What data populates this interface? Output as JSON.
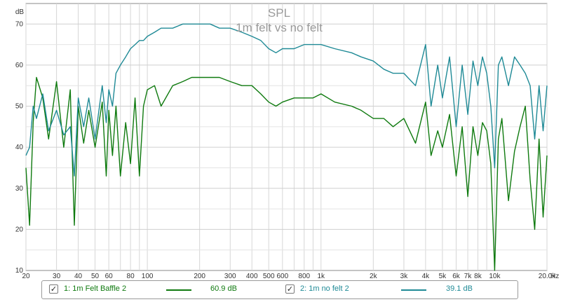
{
  "chart_data": {
    "type": "line",
    "title": "SPL",
    "subtitle": "1m felt vs no felt",
    "x_scale": "log",
    "xlim": [
      20,
      20000
    ],
    "ylim": [
      10,
      75
    ],
    "grid": true,
    "x_unit": "Hz",
    "x_ticks": [
      {
        "value": 20,
        "label": "20"
      },
      {
        "value": 30,
        "label": "30"
      },
      {
        "value": 40,
        "label": "40"
      },
      {
        "value": 50,
        "label": "50"
      },
      {
        "value": 60,
        "label": "60"
      },
      {
        "value": 80,
        "label": "80"
      },
      {
        "value": 100,
        "label": "100"
      },
      {
        "value": 200,
        "label": "200"
      },
      {
        "value": 300,
        "label": "300"
      },
      {
        "value": 400,
        "label": "400"
      },
      {
        "value": 500,
        "label": "500"
      },
      {
        "value": 600,
        "label": "600"
      },
      {
        "value": 800,
        "label": "800"
      },
      {
        "value": 1000,
        "label": "1k"
      },
      {
        "value": 2000,
        "label": "2k"
      },
      {
        "value": 3000,
        "label": "3k"
      },
      {
        "value": 4000,
        "label": "4k"
      },
      {
        "value": 5000,
        "label": "5k"
      },
      {
        "value": 6000,
        "label": "6k"
      },
      {
        "value": 7000,
        "label": "7k"
      },
      {
        "value": 8000,
        "label": "8k"
      },
      {
        "value": 10000,
        "label": "10k"
      },
      {
        "value": 20000,
        "label": "20.0k"
      }
    ],
    "y_ticks": [
      10,
      20,
      30,
      40,
      50,
      60,
      70
    ],
    "y_unit": "dB",
    "series": [
      {
        "name": "1: 1m Felt Baffle 2",
        "color": "#0f7a0f",
        "x": [
          20,
          21,
          22,
          23,
          25,
          27,
          30,
          33,
          36,
          38,
          40,
          43,
          46,
          50,
          55,
          58,
          60,
          63,
          66,
          70,
          75,
          80,
          85,
          90,
          95,
          100,
          110,
          120,
          140,
          160,
          180,
          200,
          230,
          260,
          300,
          350,
          400,
          450,
          500,
          550,
          600,
          700,
          800,
          900,
          1000,
          1200,
          1500,
          1700,
          2000,
          2300,
          2600,
          3000,
          3500,
          4000,
          4300,
          4700,
          5000,
          5500,
          6000,
          6500,
          7000,
          7500,
          8000,
          8500,
          9000,
          9500,
          10000,
          10500,
          11000,
          12000,
          13000,
          14000,
          15000,
          16000,
          17000,
          18000,
          19000,
          20000
        ],
        "values": [
          35,
          21,
          46,
          57,
          52,
          42,
          56,
          40,
          54,
          21,
          50,
          41,
          49,
          40,
          51,
          33,
          49,
          38,
          50,
          33,
          46,
          36,
          52,
          33,
          50,
          54,
          55,
          50,
          55,
          56,
          57,
          57,
          57,
          57,
          56,
          55,
          55,
          53,
          51,
          50,
          51,
          52,
          52,
          52,
          53,
          51,
          50,
          49,
          47,
          47,
          45,
          47,
          41,
          51,
          38,
          44,
          40,
          48,
          33,
          45,
          28,
          45,
          38,
          46,
          44,
          36,
          10,
          42,
          47,
          27,
          39,
          45,
          50,
          32,
          20,
          42,
          23,
          38
        ]
      },
      {
        "name": "2: 1m no felt 2",
        "color": "#1f8a96",
        "x": [
          20,
          21,
          22,
          23,
          25,
          27,
          30,
          33,
          36,
          38,
          40,
          43,
          46,
          50,
          55,
          58,
          60,
          63,
          66,
          70,
          75,
          80,
          85,
          90,
          95,
          100,
          110,
          120,
          140,
          160,
          180,
          200,
          230,
          260,
          300,
          350,
          400,
          450,
          500,
          550,
          600,
          700,
          800,
          900,
          1000,
          1200,
          1500,
          1700,
          2000,
          2300,
          2600,
          3000,
          3500,
          4000,
          4300,
          4700,
          5000,
          5500,
          6000,
          6500,
          7000,
          7500,
          8000,
          8500,
          9000,
          9500,
          10000,
          10500,
          11000,
          12000,
          13000,
          14000,
          15000,
          16000,
          17000,
          18000,
          19000,
          20000
        ],
        "values": [
          38,
          40,
          50,
          47,
          53,
          44,
          49,
          43,
          45,
          33,
          52,
          45,
          52,
          42,
          55,
          46,
          54,
          50,
          58,
          60,
          62,
          64,
          65,
          66,
          66,
          67,
          68,
          69,
          69,
          70,
          70,
          70,
          70,
          69,
          69,
          68,
          67,
          66,
          64,
          63,
          64,
          64,
          65,
          65,
          65,
          64,
          63,
          62,
          61,
          59,
          58,
          58,
          55,
          65,
          50,
          60,
          52,
          62,
          45,
          60,
          48,
          61,
          55,
          62,
          58,
          50,
          35,
          60,
          62,
          55,
          62,
          60,
          58,
          55,
          42,
          55,
          44,
          55
        ]
      }
    ]
  },
  "legend": {
    "items": [
      {
        "check": "✓",
        "label": "1: 1m Felt Baffle 2",
        "value": "60.9 dB",
        "color": "#0f7a0f"
      },
      {
        "check": "✓",
        "label": "2: 1m no felt 2",
        "value": "39.1 dB",
        "color": "#1f8a96"
      }
    ]
  }
}
